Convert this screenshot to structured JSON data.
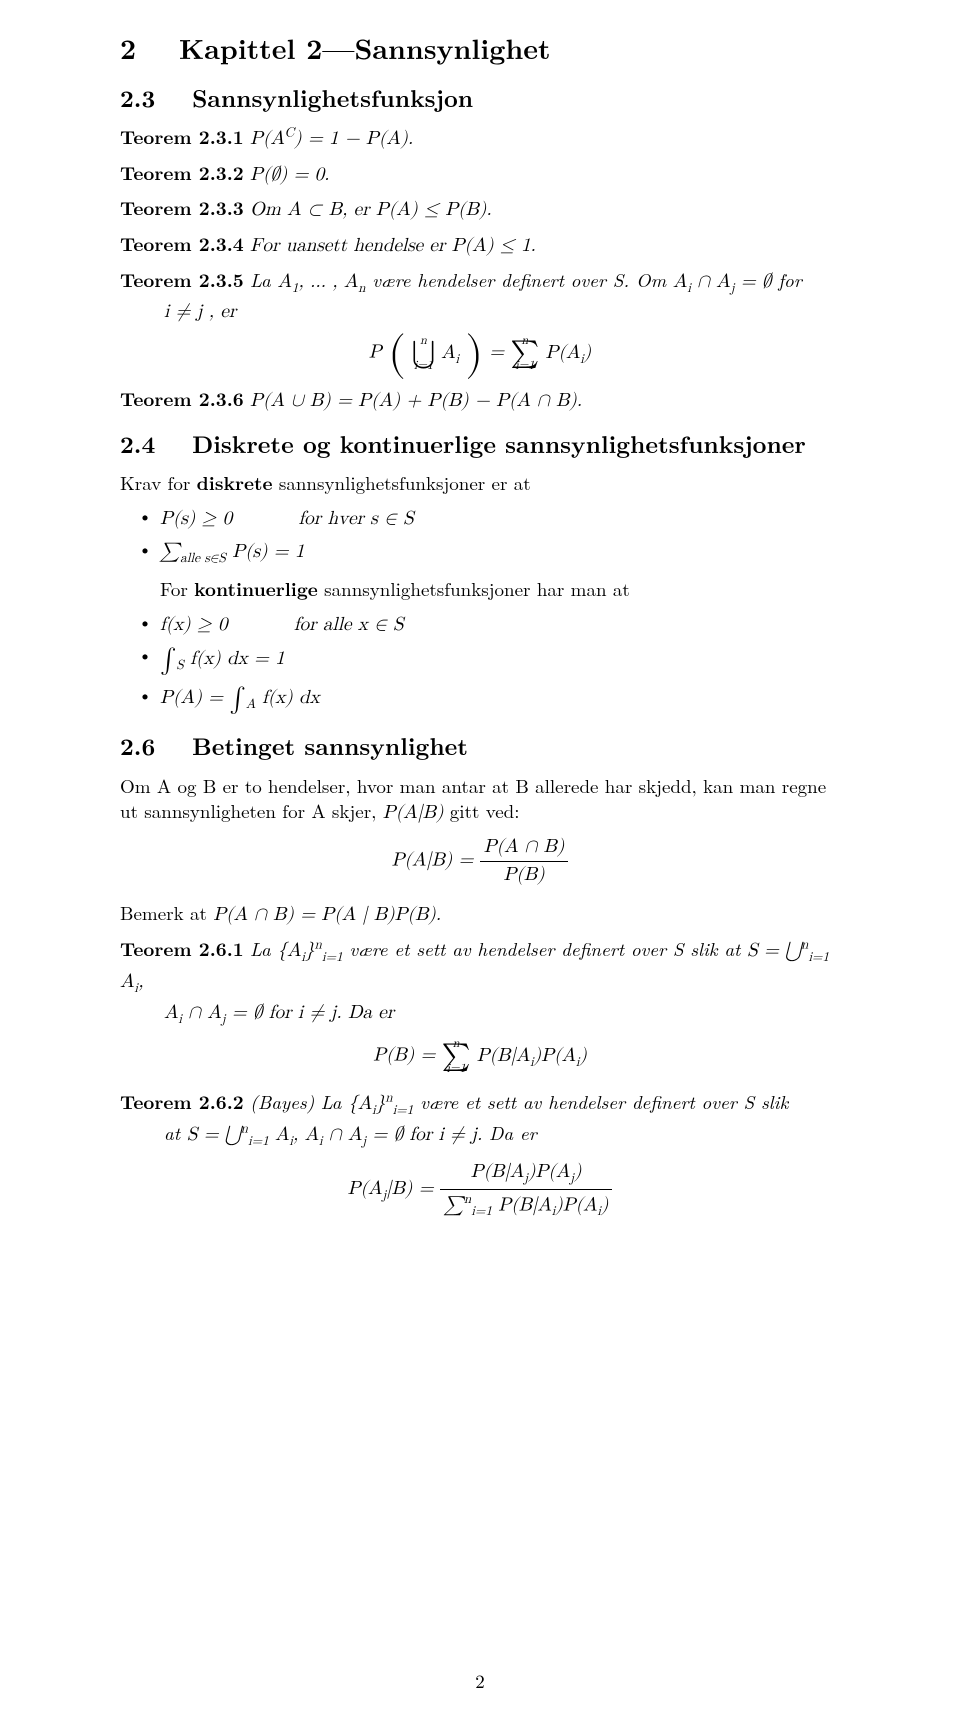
{
  "chapter": {
    "number": "2",
    "title": "Kapittel 2—Sannsynlighet"
  },
  "sections": {
    "s23": {
      "num": "2.3",
      "title": "Sannsynlighetsfunksjon"
    },
    "s24": {
      "num": "2.4",
      "title": "Diskrete og kontinuerlige sannsynlighetsfunksjoner"
    },
    "s26": {
      "num": "2.6",
      "title": "Betinget sannsynlighet"
    }
  },
  "theorems": {
    "t231": {
      "label": "Teorem 2.3.1",
      "body_html": "P(A<sup>C</sup>) = 1 − P(A)."
    },
    "t232": {
      "label": "Teorem 2.3.2",
      "body_html": "P(∅) = 0."
    },
    "t233": {
      "label": "Teorem 2.3.3",
      "body_html": "Om A ⊂ B, er P(A) ≤ P(B)."
    },
    "t234": {
      "label": "Teorem 2.3.4",
      "body_html": "For uansett hendelse er P(A) ≤ 1."
    },
    "t235": {
      "label": "Teorem 2.3.5",
      "pre": "La ",
      "seq": "A<sub>1</sub>, … , A<sub>n</sub>",
      "mid": " være hendelser definert over S. Om ",
      "cond": "A<sub>i</sub> ∩ A<sub>j</sub> = ∅",
      "for": " for",
      "line2": "i ≠ j , er"
    },
    "t236": {
      "label": "Teorem 2.3.6",
      "body_html": "P(A ∪ B) = P(A) + P(B) − P(A ∩ B)."
    },
    "t261": {
      "label": "Teorem 2.6.1",
      "pre": "La ",
      "set": "{A<sub>i</sub>}<sup>n</sup><sub>i=1</sub>",
      "mid": " være et sett av hendelser definert over S slik at ",
      "eqS": "S = ⋃<sup>n</sup><sub>i=1</sub> A<sub>i</sub>",
      "line2": "A<sub>i</sub> ∩ A<sub>j</sub> = ∅ for i ≠ j. Da er"
    },
    "t262": {
      "label": "Teorem 2.6.2",
      "name": "(Bayes)",
      "pre": " La ",
      "set": "{A<sub>i</sub>}<sup>n</sup><sub>i=1</sub>",
      "mid": " være et sett av hendelser definert over S slik",
      "line2_pre": "at ",
      "line2_eq": "S = ⋃<sup>n</sup><sub>i=1</sub> A<sub>i</sub>, A<sub>i</sub> ∩ A<sub>j</sub> = ∅ for i ≠ j.",
      "line2_post": " Da er"
    }
  },
  "s24_intro": {
    "krav": "Krav for ",
    "diskrete": "diskrete",
    "krav2": " sannsynlighetsfunksjoner er at",
    "for_kont_pre": "For ",
    "kontinuerlige": "kontinuerlige",
    "for_kont_post": " sannsynlighetsfunksjoner har man at"
  },
  "bullets24": {
    "b1": {
      "lhs": "P(s) ≥ 0",
      "rhs": "for hver s ∈ S"
    },
    "b2": "∑<sub>alle s∈S</sub> P(s) = 1",
    "b3": {
      "lhs": "f(x) ≥ 0",
      "rhs": "for alle x ∈ S"
    },
    "b4": "∫<sub>S</sub> f(x) dx = 1",
    "b5": "P(A) = ∫<sub>A</sub> f(x) dx"
  },
  "s26_text": {
    "intro1": "Om A og B er to hendelser, hvor man antar at B allerede har skjedd, kan man regne",
    "intro2_pre": "ut sannsynligheten for A skjer, ",
    "intro2_math": "P(A|B)",
    "intro2_post": " gitt ved:",
    "bemark_pre": "Bemerk at ",
    "bemark_math": "P(A ∩ B) = P(A | B)P(B).",
    "cond_frac_num": "P(A ∩ B)",
    "cond_frac_den": "P(B)",
    "cond_lhs": "P(A|B) = "
  },
  "displays": {
    "union_sum": {
      "lhs": "P",
      "union_top": "n",
      "union_bot": "i=1",
      "union_body": "A<sub>i</sub>",
      "eq": " = ",
      "sum_top": "n",
      "sum_bot": "i=1",
      "sum_body": "P(A<sub>i</sub>)"
    },
    "pb_sum": {
      "lhs": "P(B) = ",
      "sum_top": "n",
      "sum_bot": "i=1",
      "sum_body": "P(B|A<sub>i</sub>)P(A<sub>i</sub>)"
    },
    "bayes": {
      "lhs": "P(A<sub>j</sub>|B) = ",
      "num": "P(B|A<sub>j</sub>)P(A<sub>j</sub>)",
      "den": "∑<sup>n</sup><sub>i=1</sub> P(B|A<sub>i</sub>)P(A<sub>i</sub>)"
    }
  },
  "pagenum": "2"
}
